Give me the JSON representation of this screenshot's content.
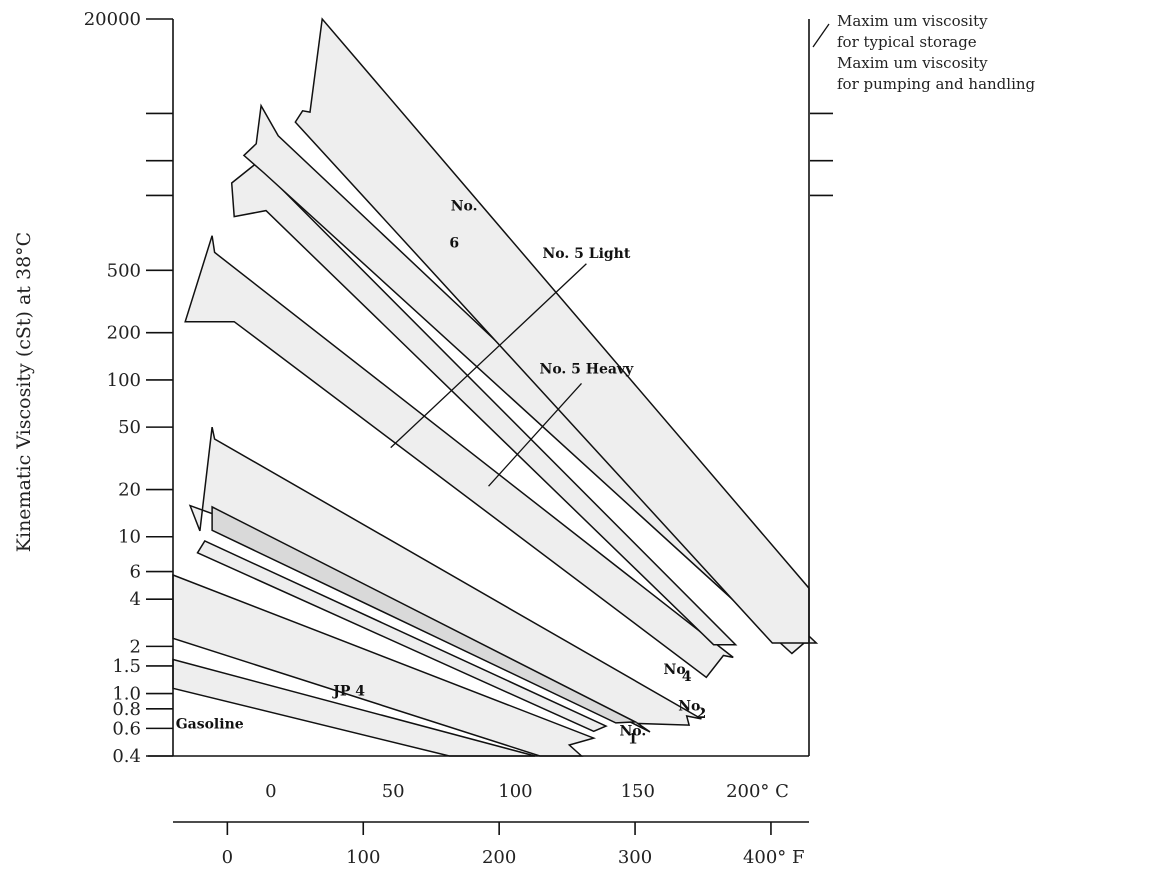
{
  "chart_data": {
    "type": "area",
    "title": "",
    "ylabel": "Kinematic Viscosity (cSt) at 38°C",
    "y_scale": "log",
    "ylim": [
      0.4,
      20000
    ],
    "xlim_c": [
      -40,
      220
    ],
    "y_ticks": [
      {
        "value": 20000,
        "label": "20000"
      },
      {
        "value": 500,
        "label": "500"
      },
      {
        "value": 200,
        "label": "200"
      },
      {
        "value": 100,
        "label": "100"
      },
      {
        "value": 50,
        "label": "50"
      },
      {
        "value": 20,
        "label": "20"
      },
      {
        "value": 10,
        "label": "10"
      },
      {
        "value": 6,
        "label": "6"
      },
      {
        "value": 4,
        "label": "4"
      },
      {
        "value": 2,
        "label": "2"
      },
      {
        "value": 1.5,
        "label": "1.5"
      },
      {
        "value": 1.0,
        "label": "1.0"
      },
      {
        "value": 0.8,
        "label": "0.8"
      },
      {
        "value": 0.6,
        "label": "0.6"
      },
      {
        "value": 0.4,
        "label": "0.4"
      }
    ],
    "y_unlabeled_ticks": [
      5000,
      2500,
      1500
    ],
    "x_ticks_c": [
      {
        "value": 0,
        "label": "0"
      },
      {
        "value": 50,
        "label": "50"
      },
      {
        "value": 100,
        "label": "100"
      },
      {
        "value": 150,
        "label": "150"
      },
      {
        "value": 200,
        "label": "200° C"
      }
    ],
    "x_ticks_f": [
      {
        "value": 0,
        "label": "0"
      },
      {
        "value": 100,
        "label": "100"
      },
      {
        "value": 200,
        "label": "200"
      },
      {
        "value": 300,
        "label": "300"
      },
      {
        "value": 400,
        "label": "400° F"
      }
    ],
    "bands": [
      {
        "name": "Gasoline",
        "label": "Gasoline",
        "fill": "#eeeeee",
        "polygon": [
          [
            -40,
            1.65
          ],
          [
            -40,
            1.08
          ],
          [
            73,
            0.4
          ],
          [
            108,
            0.4
          ]
        ]
      },
      {
        "name": "JP 4",
        "label": "JP 4",
        "fill": "#eeeeee",
        "polygon": [
          [
            -40,
            5.7
          ],
          [
            -40,
            2.25
          ],
          [
            110,
            0.4
          ],
          [
            127,
            0.4
          ],
          [
            122,
            0.47
          ],
          [
            132,
            0.52
          ]
        ]
      },
      {
        "name": "No. 1",
        "label": "No. 1",
        "fill": "#eeeeee",
        "polygon": [
          [
            -30,
            7.9
          ],
          [
            -27,
            9.4
          ],
          [
            137,
            0.62
          ],
          [
            132,
            0.575
          ]
        ]
      },
      {
        "name": "No. 2",
        "label": "No. 2",
        "fill": "#eeeeee",
        "polygon": [
          [
            -33,
            15.8
          ],
          [
            -29,
            10.9
          ],
          [
            -24,
            50
          ],
          [
            -23,
            42
          ],
          [
            176,
            0.69
          ],
          [
            170,
            0.72
          ],
          [
            171,
            0.63
          ],
          [
            150,
            0.645
          ],
          [
            155,
            0.57
          ],
          [
            -21,
            13.5
          ]
        ]
      },
      {
        "name": "No. 2 core",
        "label": "",
        "fill": "#d9d9d9",
        "polygon": [
          [
            -24,
            15.5
          ],
          [
            -24,
            11
          ],
          [
            141,
            0.65
          ],
          [
            149,
            0.66
          ]
        ]
      },
      {
        "name": "No. 4",
        "label": "No. 4",
        "fill": "#eeeeee",
        "polygon": [
          [
            -35,
            235
          ],
          [
            -24,
            830
          ],
          [
            -23,
            650
          ],
          [
            189,
            1.7
          ],
          [
            185,
            1.75
          ],
          [
            178,
            1.27
          ],
          [
            -15,
            235
          ]
        ]
      },
      {
        "name": "No. 5 Light",
        "label": "No. 5 Light",
        "fill": "#eeeeee",
        "polygon": [
          [
            -16,
            1800
          ],
          [
            -6,
            2400
          ],
          [
            190,
            2.05
          ],
          [
            181,
            2.05
          ],
          [
            -2,
            1200
          ],
          [
            -15,
            1100
          ]
        ]
      },
      {
        "name": "No. 5 Heavy",
        "label": "No. 5 Heavy",
        "fill": "#eeeeee",
        "polygon": [
          [
            -11,
            2700
          ],
          [
            -6,
            3200
          ],
          [
            -4,
            5600
          ],
          [
            3,
            3600
          ],
          [
            223,
            2.1
          ],
          [
            218,
            2.1
          ],
          [
            213,
            1.8
          ],
          [
            -3,
            2100
          ]
        ]
      },
      {
        "name": "No. 6",
        "label": "No. 6",
        "fill": "#eeeeee",
        "polygon": [
          [
            10,
            4400
          ],
          [
            13,
            5200
          ],
          [
            16,
            5100
          ],
          [
            21,
            20000
          ],
          [
            220,
            4.7
          ],
          [
            220,
            2.1
          ],
          [
            205,
            2.1
          ]
        ]
      }
    ],
    "band_labels": [
      {
        "text": "Gasoline",
        "x": -25,
        "y": 0.6
      },
      {
        "text": "JP 4",
        "x": 32,
        "y": 0.97
      },
      {
        "text": "No.",
        "x": 148,
        "y": 0.54
      },
      {
        "text": "1",
        "x": 148,
        "y": 0.48
      },
      {
        "text": "No.",
        "x": 172,
        "y": 0.78
      },
      {
        "text": "2",
        "x": 176,
        "y": 0.7
      },
      {
        "text": "No.",
        "x": 166,
        "y": 1.33
      },
      {
        "text": "4",
        "x": 170,
        "y": 1.2
      },
      {
        "text": "No.",
        "x": 79,
        "y": 1200
      },
      {
        "text": "6",
        "x": 75,
        "y": 700
      },
      {
        "text": "No. 5 Light",
        "x": 129,
        "y": 600
      },
      {
        "text": "No. 5 Heavy",
        "x": 129,
        "y": 110
      }
    ],
    "leader_lines": [
      {
        "from": [
          129,
          550
        ],
        "to": [
          49,
          37
        ]
      },
      {
        "from": [
          127,
          95
        ],
        "to": [
          89,
          21
        ]
      }
    ],
    "annotations": [
      {
        "text": "Maxim um viscosity",
        "y_ref": 20000
      },
      {
        "text": "for typical storage",
        "y_ref": 5000
      },
      {
        "text": "Maxim um viscosity",
        "y_ref": 2500
      },
      {
        "text": "for pumping and handling",
        "y_ref": 1500
      }
    ],
    "annotation_ticks": [
      5000,
      2500,
      1500
    ]
  }
}
